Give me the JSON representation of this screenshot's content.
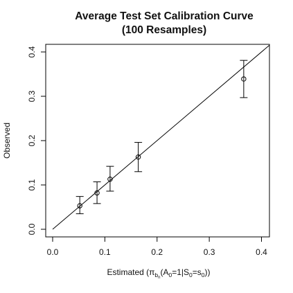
{
  "chart_data": {
    "type": "scatter",
    "title": "Average Test Set Calibration Curve",
    "subtitle": "(100 Resamples)",
    "xlabel": "Estimated (πbn(A0=1|S0=s0))",
    "ylabel": "Observed",
    "xlim": [
      0.0,
      0.4
    ],
    "ylim": [
      0.0,
      0.4
    ],
    "x_ticks": [
      "0.0",
      "0.1",
      "0.2",
      "0.3",
      "0.4"
    ],
    "y_ticks": [
      "0.0",
      "0.1",
      "0.2",
      "0.3",
      "0.4"
    ],
    "grid": false,
    "legend": "none",
    "reference_line": {
      "from": [
        0,
        0
      ],
      "to": [
        0.415,
        0.415
      ],
      "meaning": "y = x"
    },
    "points": [
      {
        "x": 0.052,
        "y": 0.053,
        "lower": 0.035,
        "upper": 0.074
      },
      {
        "x": 0.085,
        "y": 0.082,
        "lower": 0.058,
        "upper": 0.107
      },
      {
        "x": 0.11,
        "y": 0.113,
        "lower": 0.086,
        "upper": 0.142
      },
      {
        "x": 0.164,
        "y": 0.163,
        "lower": 0.13,
        "upper": 0.196
      },
      {
        "x": 0.366,
        "y": 0.339,
        "lower": 0.297,
        "upper": 0.381
      }
    ]
  },
  "colors": {
    "line": "#000000",
    "text": "#111111"
  }
}
